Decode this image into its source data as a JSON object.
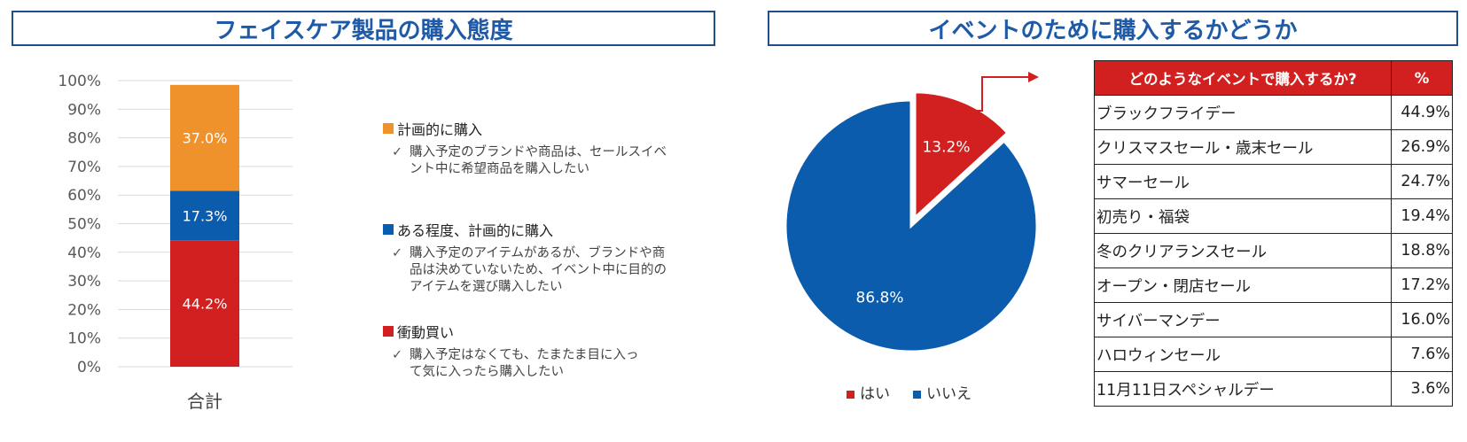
{
  "left_title": "フェイスケア製品の購入態度",
  "right_title": "イベントのために購入するかどうか",
  "legend": [
    {
      "label": "計画的に購入",
      "color": "#f0922b",
      "note": "購入予定のブランドや商品は、セールスイベント中に希望商品を購入したい"
    },
    {
      "label": "ある程度、計画的に購入",
      "color": "#0b5cad",
      "note": "購入予定のアイテムがあるが、ブランドや商品は決めていないため、イベント中に目的のアイテムを選び購入したい"
    },
    {
      "label": "衝動買い",
      "color": "#d21f1f",
      "note": "購入予定はなくても、たまたま目に入って気に入ったら購入したい"
    }
  ],
  "check_mark": "✓",
  "table": {
    "header_event": "どのようなイベントで購入するか?",
    "header_pct": "%",
    "rows": [
      {
        "event": "ブラックフライデー",
        "pct": "44.9%"
      },
      {
        "event": "クリスマスセール・歳末セール",
        "pct": "26.9%"
      },
      {
        "event": "サマーセール",
        "pct": "24.7%"
      },
      {
        "event": "初売り・福袋",
        "pct": "19.4%"
      },
      {
        "event": "冬のクリアランスセール",
        "pct": "18.8%"
      },
      {
        "event": "オープン・閉店セール",
        "pct": "17.2%"
      },
      {
        "event": "サイバーマンデー",
        "pct": "16.0%"
      },
      {
        "event": "ハロウィンセール",
        "pct": "7.6%"
      },
      {
        "event": "11月11日スペシャルデー",
        "pct": "3.6%"
      }
    ]
  },
  "chart_data": [
    {
      "type": "bar",
      "stacked": true,
      "categories": [
        "合計"
      ],
      "series": [
        {
          "name": "衝動買い",
          "values": [
            44.2
          ],
          "label": "44.2%",
          "color": "#d21f1f"
        },
        {
          "name": "ある程度、計画的に購入",
          "values": [
            17.3
          ],
          "label": "17.3%",
          "color": "#0b5cad"
        },
        {
          "name": "計画的に購入",
          "values": [
            37.0
          ],
          "label": "37.0%",
          "color": "#f0922b"
        }
      ],
      "ylim": [
        0,
        100
      ],
      "yticks": [
        "0%",
        "10%",
        "20%",
        "30%",
        "40%",
        "50%",
        "60%",
        "70%",
        "80%",
        "90%",
        "100%"
      ],
      "grid": true
    },
    {
      "type": "pie",
      "slices": [
        {
          "name": "はい",
          "value": 13.2,
          "label": "13.2%",
          "color": "#d21f1f"
        },
        {
          "name": "いいえ",
          "value": 86.8,
          "label": "86.8%",
          "color": "#0b5cad"
        }
      ],
      "legend_position": "bottom"
    }
  ]
}
